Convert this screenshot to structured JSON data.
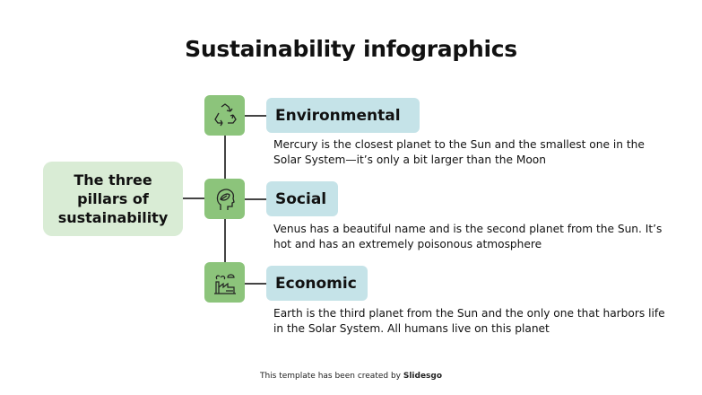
{
  "title": "Sustainability infographics",
  "center": {
    "label": "The three pillars of sustainability"
  },
  "pillars": [
    {
      "label": "Environmental",
      "icon": "recycle-icon",
      "description": "Mercury is the closest planet to the Sun and the smallest one in the Solar System—it’s only a bit larger than the Moon"
    },
    {
      "label": "Social",
      "icon": "head-leaf-icon",
      "description": "Venus has a beautiful name and is the second planet from the Sun. It’s hot and has an extremely poisonous atmosphere"
    },
    {
      "label": "Economic",
      "icon": "factory-icon",
      "description": "Earth is the third planet from the Sun and the only one that harbors life in the Solar System. All humans live on this planet"
    }
  ],
  "footer": {
    "text": "This template has been created by ",
    "brand": "Slidesgo"
  },
  "colors": {
    "center": "#d9ecd5",
    "icon_box": "#8cc47b",
    "label_box": "#c5e3e8",
    "line": "#444444"
  }
}
